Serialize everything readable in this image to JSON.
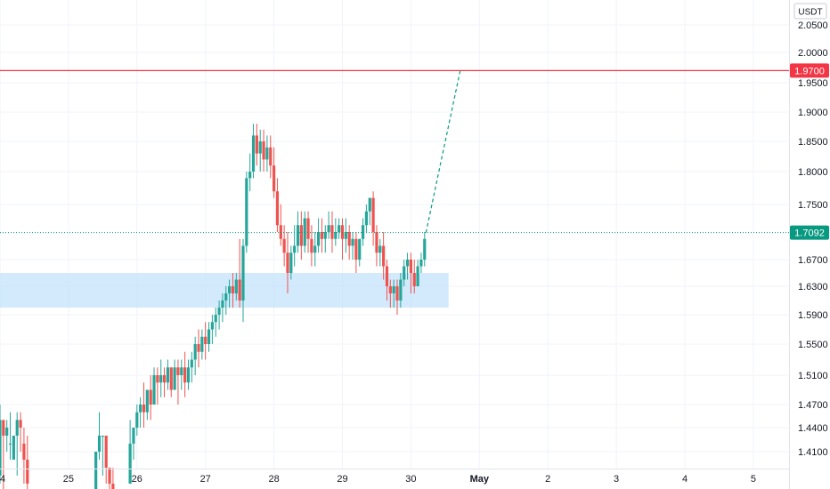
{
  "chart_data": {
    "type": "candlestick",
    "currency": "USDT",
    "y_ticks": [
      "2.0500",
      "2.0000",
      "1.9500",
      "1.9000",
      "1.8500",
      "1.8000",
      "1.7500",
      "1.6700",
      "1.6300",
      "1.5900",
      "1.5500",
      "1.5100",
      "1.4700",
      "1.4400",
      "1.4100"
    ],
    "y_tick_values": [
      2.05,
      2.0,
      1.95,
      1.9,
      1.85,
      1.8,
      1.75,
      1.67,
      1.63,
      1.59,
      1.55,
      1.51,
      1.47,
      1.44,
      1.41
    ],
    "x_ticks": [
      {
        "label": "4",
        "day": 0
      },
      {
        "label": "25",
        "day": 1
      },
      {
        "label": "26",
        "day": 2
      },
      {
        "label": "27",
        "day": 3
      },
      {
        "label": "28",
        "day": 4
      },
      {
        "label": "29",
        "day": 5
      },
      {
        "label": "30",
        "day": 6
      },
      {
        "label": "May",
        "day": 7,
        "bold": true
      },
      {
        "label": "2",
        "day": 8
      },
      {
        "label": "3",
        "day": 9
      },
      {
        "label": "4",
        "day": 10
      },
      {
        "label": "5",
        "day": 11
      }
    ],
    "horizontal_line": {
      "value": 1.97,
      "label": "1.9700",
      "color": "#f23645"
    },
    "current_price": {
      "value": 1.7092,
      "label": "1.7092",
      "color": "#089981"
    },
    "zone": {
      "low": 1.6,
      "high": 1.65,
      "day_start": -0.05,
      "day_end": 6.55,
      "color": "#bbdefb"
    },
    "projection": {
      "from_day": 6.22,
      "from_value": 1.7092,
      "to_day": 6.72,
      "to_value": 1.97,
      "color": "#089981"
    },
    "colors": {
      "up": "#26a69a",
      "down": "#ef5350",
      "grid": "#f0f3fa",
      "axis_text": "#131722"
    },
    "candles": [
      [
        0.0,
        1.38,
        1.47,
        1.45,
        1.37
      ],
      [
        0.05,
        1.45,
        1.45,
        1.43,
        1.35
      ],
      [
        0.1,
        1.43,
        1.45,
        1.44,
        1.41
      ],
      [
        0.15,
        1.42,
        1.46,
        1.42,
        1.4
      ],
      [
        0.2,
        1.4,
        1.42,
        1.43,
        1.4
      ],
      [
        0.25,
        1.43,
        1.46,
        1.45,
        1.38
      ],
      [
        0.3,
        1.45,
        1.46,
        1.44,
        1.41
      ],
      [
        0.35,
        1.42,
        1.44,
        1.4,
        1.37
      ],
      [
        0.4,
        1.4,
        1.43,
        1.37,
        1.36
      ],
      [
        1.4,
        1.36,
        1.37,
        1.41,
        1.36
      ],
      [
        1.45,
        1.41,
        1.46,
        1.43,
        1.4
      ],
      [
        1.5,
        1.43,
        1.43,
        1.43,
        1.38
      ],
      [
        1.55,
        1.43,
        1.43,
        1.39,
        1.37
      ],
      [
        1.6,
        1.39,
        1.39,
        1.37,
        1.36
      ],
      [
        1.65,
        1.37,
        1.39,
        1.36,
        1.35
      ],
      [
        1.9,
        1.37,
        1.45,
        1.42,
        1.37
      ],
      [
        1.95,
        1.42,
        1.43,
        1.44,
        1.4
      ],
      [
        2.0,
        1.44,
        1.47,
        1.46,
        1.43
      ],
      [
        2.05,
        1.46,
        1.48,
        1.47,
        1.44
      ],
      [
        2.1,
        1.47,
        1.5,
        1.46,
        1.44
      ],
      [
        2.15,
        1.46,
        1.49,
        1.49,
        1.45
      ],
      [
        2.2,
        1.49,
        1.51,
        1.47,
        1.45
      ],
      [
        2.25,
        1.47,
        1.52,
        1.51,
        1.47
      ],
      [
        2.3,
        1.51,
        1.52,
        1.5,
        1.47
      ],
      [
        2.35,
        1.5,
        1.53,
        1.51,
        1.48
      ],
      [
        2.4,
        1.51,
        1.52,
        1.5,
        1.48
      ],
      [
        2.45,
        1.5,
        1.53,
        1.52,
        1.49
      ],
      [
        2.5,
        1.52,
        1.52,
        1.49,
        1.48
      ],
      [
        2.55,
        1.49,
        1.53,
        1.52,
        1.49
      ],
      [
        2.6,
        1.52,
        1.53,
        1.51,
        1.47
      ],
      [
        2.65,
        1.51,
        1.53,
        1.52,
        1.49
      ],
      [
        2.7,
        1.52,
        1.54,
        1.5,
        1.48
      ],
      [
        2.75,
        1.5,
        1.53,
        1.52,
        1.49
      ],
      [
        2.8,
        1.52,
        1.54,
        1.53,
        1.5
      ],
      [
        2.85,
        1.53,
        1.56,
        1.55,
        1.51
      ],
      [
        2.9,
        1.55,
        1.57,
        1.54,
        1.52
      ],
      [
        2.95,
        1.54,
        1.57,
        1.56,
        1.53
      ],
      [
        3.0,
        1.56,
        1.58,
        1.55,
        1.53
      ],
      [
        3.05,
        1.55,
        1.58,
        1.57,
        1.54
      ],
      [
        3.1,
        1.57,
        1.59,
        1.58,
        1.55
      ],
      [
        3.15,
        1.58,
        1.6,
        1.59,
        1.56
      ],
      [
        3.2,
        1.59,
        1.61,
        1.6,
        1.57
      ],
      [
        3.25,
        1.6,
        1.62,
        1.61,
        1.58
      ],
      [
        3.3,
        1.61,
        1.63,
        1.62,
        1.59
      ],
      [
        3.35,
        1.62,
        1.64,
        1.63,
        1.6
      ],
      [
        3.4,
        1.63,
        1.65,
        1.62,
        1.6
      ],
      [
        3.45,
        1.62,
        1.65,
        1.64,
        1.61
      ],
      [
        3.5,
        1.64,
        1.7,
        1.61,
        1.6
      ],
      [
        3.55,
        1.61,
        1.7,
        1.69,
        1.58
      ],
      [
        3.6,
        1.69,
        1.8,
        1.79,
        1.68
      ],
      [
        3.65,
        1.79,
        1.83,
        1.8,
        1.77
      ],
      [
        3.7,
        1.8,
        1.88,
        1.86,
        1.79
      ],
      [
        3.75,
        1.86,
        1.88,
        1.83,
        1.81
      ],
      [
        3.8,
        1.83,
        1.87,
        1.85,
        1.8
      ],
      [
        3.85,
        1.85,
        1.87,
        1.82,
        1.8
      ],
      [
        3.9,
        1.82,
        1.86,
        1.84,
        1.8
      ],
      [
        3.95,
        1.84,
        1.86,
        1.81,
        1.79
      ],
      [
        4.0,
        1.81,
        1.84,
        1.77,
        1.76
      ],
      [
        4.05,
        1.77,
        1.79,
        1.72,
        1.71
      ],
      [
        4.1,
        1.72,
        1.75,
        1.7,
        1.69
      ],
      [
        4.15,
        1.7,
        1.72,
        1.68,
        1.66
      ],
      [
        4.2,
        1.68,
        1.71,
        1.65,
        1.62
      ],
      [
        4.25,
        1.65,
        1.69,
        1.68,
        1.64
      ],
      [
        4.3,
        1.68,
        1.72,
        1.69,
        1.66
      ],
      [
        4.35,
        1.69,
        1.74,
        1.72,
        1.68
      ],
      [
        4.4,
        1.72,
        1.74,
        1.69,
        1.67
      ],
      [
        4.45,
        1.69,
        1.74,
        1.73,
        1.68
      ],
      [
        4.5,
        1.73,
        1.74,
        1.7,
        1.68
      ],
      [
        4.55,
        1.7,
        1.72,
        1.68,
        1.66
      ],
      [
        4.6,
        1.68,
        1.71,
        1.69,
        1.66
      ],
      [
        4.65,
        1.69,
        1.73,
        1.71,
        1.68
      ],
      [
        4.7,
        1.71,
        1.73,
        1.7,
        1.68
      ],
      [
        4.75,
        1.7,
        1.72,
        1.71,
        1.68
      ],
      [
        4.8,
        1.71,
        1.74,
        1.72,
        1.7
      ],
      [
        4.85,
        1.72,
        1.74,
        1.7,
        1.68
      ],
      [
        4.9,
        1.7,
        1.73,
        1.71,
        1.69
      ],
      [
        4.95,
        1.71,
        1.73,
        1.72,
        1.7
      ],
      [
        5.0,
        1.72,
        1.73,
        1.7,
        1.67
      ],
      [
        5.05,
        1.7,
        1.73,
        1.71,
        1.68
      ],
      [
        5.1,
        1.71,
        1.72,
        1.69,
        1.67
      ],
      [
        5.15,
        1.69,
        1.71,
        1.7,
        1.67
      ],
      [
        5.2,
        1.7,
        1.71,
        1.67,
        1.65
      ],
      [
        5.25,
        1.67,
        1.7,
        1.7,
        1.66
      ],
      [
        5.3,
        1.7,
        1.73,
        1.72,
        1.69
      ],
      [
        5.35,
        1.72,
        1.75,
        1.74,
        1.71
      ],
      [
        5.4,
        1.74,
        1.76,
        1.76,
        1.72
      ],
      [
        5.45,
        1.76,
        1.77,
        1.71,
        1.69
      ],
      [
        5.5,
        1.71,
        1.72,
        1.68,
        1.66
      ],
      [
        5.55,
        1.68,
        1.7,
        1.69,
        1.66
      ],
      [
        5.6,
        1.69,
        1.71,
        1.66,
        1.64
      ],
      [
        5.65,
        1.66,
        1.67,
        1.63,
        1.61
      ],
      [
        5.7,
        1.63,
        1.64,
        1.62,
        1.6
      ],
      [
        5.75,
        1.62,
        1.64,
        1.63,
        1.6
      ],
      [
        5.8,
        1.63,
        1.64,
        1.61,
        1.59
      ],
      [
        5.85,
        1.61,
        1.65,
        1.64,
        1.6
      ],
      [
        5.9,
        1.64,
        1.67,
        1.66,
        1.63
      ],
      [
        5.95,
        1.66,
        1.68,
        1.67,
        1.64
      ],
      [
        6.0,
        1.67,
        1.68,
        1.65,
        1.62
      ],
      [
        6.05,
        1.65,
        1.67,
        1.63,
        1.62
      ],
      [
        6.1,
        1.63,
        1.67,
        1.66,
        1.63
      ],
      [
        6.15,
        1.66,
        1.68,
        1.67,
        1.65
      ],
      [
        6.2,
        1.67,
        1.71,
        1.7,
        1.66
      ]
    ]
  }
}
